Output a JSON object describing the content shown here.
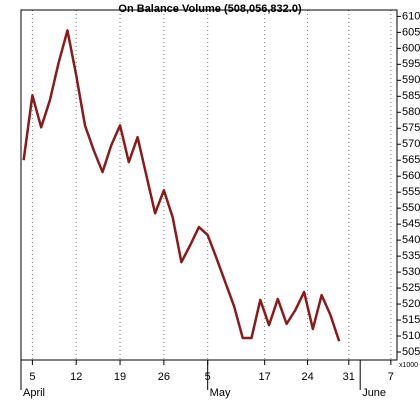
{
  "chart_data": {
    "type": "line",
    "title": "On Balance Volume (508,056,832.0)",
    "x": [
      0,
      1,
      2,
      3,
      4,
      5,
      6,
      7,
      8,
      9,
      10,
      11,
      12,
      13,
      14,
      15,
      16,
      17,
      18,
      19,
      20,
      21,
      22,
      23,
      24,
      25,
      26,
      27,
      28,
      29,
      30,
      31,
      32,
      33,
      34,
      35,
      36
    ],
    "series": [
      {
        "name": "On Balance Volume",
        "color": "#8b1a1a",
        "values": [
          565,
          585.3,
          575.3,
          583.8,
          595.6,
          605.6,
          591.6,
          575.9,
          568.1,
          561.3,
          569.7,
          575.9,
          564.4,
          572.2,
          560.3,
          548.4,
          555.6,
          547.2,
          533.1,
          538.4,
          544.1,
          541.6,
          534.4,
          526.9,
          519.4,
          509.4,
          509.4,
          521.3,
          513.4,
          521.6,
          513.8,
          518.1,
          523.8,
          512.2,
          522.8,
          516.6,
          508.4
        ]
      }
    ],
    "xlim": [
      -0.3,
      42.6
    ],
    "xticks": [
      {
        "value": 1,
        "label": "5"
      },
      {
        "value": 6,
        "label": "12"
      },
      {
        "value": 11,
        "label": "19"
      },
      {
        "value": 16,
        "label": "26"
      },
      {
        "value": 21,
        "label": "5"
      },
      {
        "value": 27.5,
        "label": "17"
      },
      {
        "value": 32.4,
        "label": "24"
      },
      {
        "value": 37.1,
        "label": "31"
      },
      {
        "value": 41.9,
        "label": "7"
      }
    ],
    "month_ticks": [
      {
        "value": -0.3,
        "label": "April"
      },
      {
        "value": 21,
        "label": "May"
      },
      {
        "value": 38.4,
        "label": "June"
      }
    ],
    "ylim": [
      502.5,
      612
    ],
    "yticks": [
      505,
      510,
      515,
      520,
      525,
      530,
      535,
      540,
      545,
      550,
      555,
      560,
      565,
      570,
      575,
      580,
      585,
      590,
      595,
      600,
      605,
      610
    ],
    "y_unit": "x1000",
    "grid": true
  }
}
